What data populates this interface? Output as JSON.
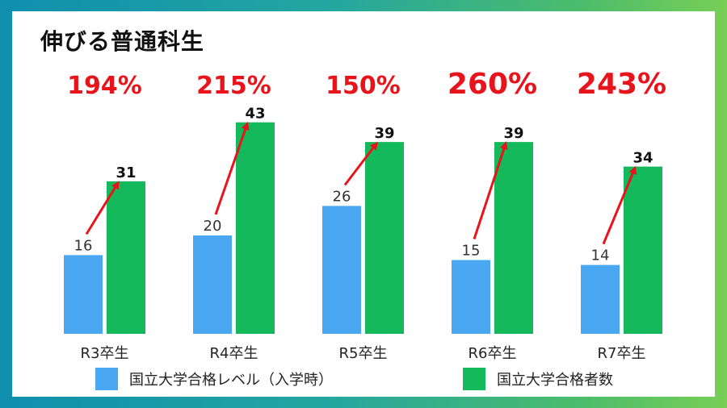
{
  "title": "伸びる普通科生",
  "chart_data": {
    "type": "bar",
    "categories": [
      "R3卒生",
      "R4卒生",
      "R5卒生",
      "R6卒生",
      "R7卒生"
    ],
    "series": [
      {
        "name": "国立大学合格レベル（入学時）",
        "values": [
          16,
          20,
          26,
          15,
          14
        ],
        "color": "#4aa7f1"
      },
      {
        "name": "国立大学合格者数",
        "values": [
          31,
          43,
          39,
          39,
          34
        ],
        "color": "#13b95a"
      }
    ],
    "growth_labels": [
      "194%",
      "215%",
      "150%",
      "260%",
      "243%"
    ],
    "arrow_color": "#e8141c",
    "ylim": [
      0,
      45
    ]
  }
}
